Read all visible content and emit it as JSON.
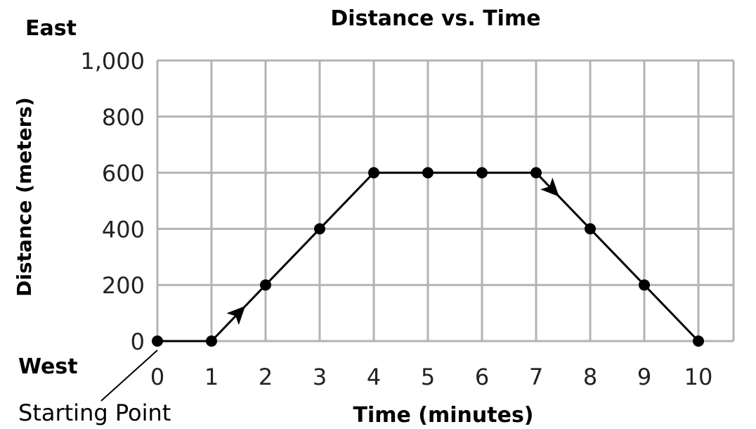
{
  "chart_data": {
    "type": "line",
    "title": "Distance vs. Time",
    "xlabel": "Time (minutes)",
    "ylabel": "Distance (meters)",
    "x": [
      0,
      1,
      2,
      3,
      4,
      5,
      6,
      7,
      8,
      9,
      10
    ],
    "y": [
      0,
      0,
      200,
      400,
      600,
      600,
      600,
      600,
      400,
      200,
      0
    ],
    "xlim": [
      0,
      10
    ],
    "ylim": [
      0,
      1000
    ],
    "x_ticks": [
      "0",
      "1",
      "2",
      "3",
      "4",
      "5",
      "6",
      "7",
      "8",
      "9",
      "10"
    ],
    "y_ticks": [
      "0",
      "200",
      "400",
      "600",
      "800",
      "1,000"
    ],
    "y_tick_values": [
      0,
      200,
      400,
      600,
      800,
      1000
    ],
    "grid": true,
    "annotations": {
      "east": "East",
      "west": "West",
      "start": "Starting Point"
    },
    "arrows": [
      {
        "direction": "up",
        "at_x": 1.5
      },
      {
        "direction": "down",
        "at_x": 7.3
      }
    ],
    "colors": {
      "line": "#000000",
      "grid": "#b3b3b3",
      "marker": "#000000"
    }
  }
}
